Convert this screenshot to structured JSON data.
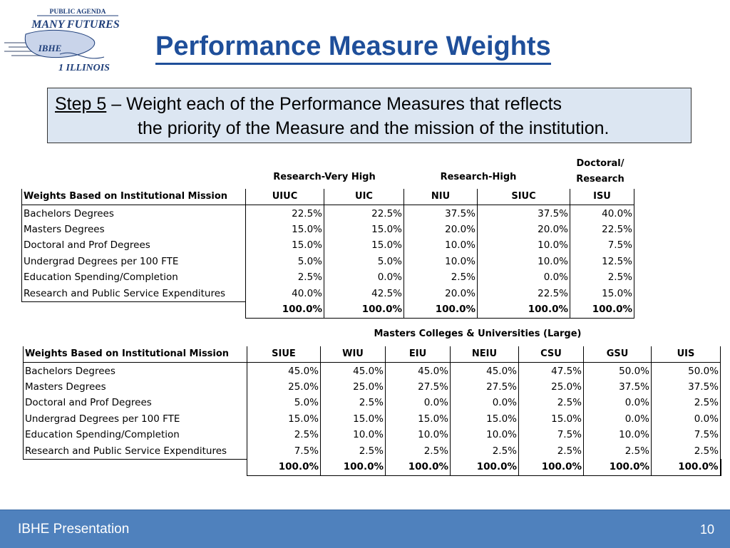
{
  "logo": {
    "line1": "PUBLIC AGENDA",
    "line2": "MANY FUTURES",
    "line3": "IBHE",
    "line4": "1 ILLINOIS"
  },
  "title": "Performance Measure Weights",
  "step": {
    "label": "Step 5",
    "line1_rest": " – Weight each of the Performance Measures that reflects",
    "line2": "the priority of the Measure and the mission of the institution."
  },
  "table1": {
    "groups": [
      {
        "label": "Research-Very High"
      },
      {
        "label": "Research-High"
      },
      {
        "label_line1": "Doctoral/",
        "label_line2": "Research"
      }
    ],
    "header": "Weights Based on Institutional Mission",
    "columns": [
      "UIUC",
      "UIC",
      "NIU",
      "SIUC",
      "ISU"
    ],
    "rows": [
      {
        "label": "Bachelors Degrees",
        "values": [
          "22.5%",
          "22.5%",
          "37.5%",
          "37.5%",
          "40.0%"
        ]
      },
      {
        "label": "Masters Degrees",
        "values": [
          "15.0%",
          "15.0%",
          "20.0%",
          "20.0%",
          "22.5%"
        ]
      },
      {
        "label": "Doctoral and Prof Degrees",
        "values": [
          "15.0%",
          "15.0%",
          "10.0%",
          "10.0%",
          "7.5%"
        ]
      },
      {
        "label": "Undergrad Degrees per 100 FTE",
        "values": [
          "5.0%",
          "5.0%",
          "10.0%",
          "10.0%",
          "12.5%"
        ]
      },
      {
        "label": "Education Spending/Completion",
        "values": [
          "2.5%",
          "0.0%",
          "2.5%",
          "0.0%",
          "2.5%"
        ]
      },
      {
        "label": "Research and Public Service Expenditures",
        "values": [
          "40.0%",
          "42.5%",
          "20.0%",
          "22.5%",
          "15.0%"
        ]
      }
    ],
    "totals": [
      "100.0%",
      "100.0%",
      "100.0%",
      "100.0%",
      "100.0%"
    ]
  },
  "table2": {
    "group": "Masters Colleges & Universities (Large)",
    "header": "Weights Based on Institutional Mission",
    "columns": [
      "SIUE",
      "WIU",
      "EIU",
      "NEIU",
      "CSU",
      "GSU",
      "UIS"
    ],
    "rows": [
      {
        "label": "Bachelors Degrees",
        "values": [
          "45.0%",
          "45.0%",
          "45.0%",
          "45.0%",
          "47.5%",
          "50.0%",
          "50.0%"
        ]
      },
      {
        "label": "Masters Degrees",
        "values": [
          "25.0%",
          "25.0%",
          "27.5%",
          "27.5%",
          "25.0%",
          "37.5%",
          "37.5%"
        ]
      },
      {
        "label": "Doctoral and Prof Degrees",
        "values": [
          "5.0%",
          "2.5%",
          "0.0%",
          "0.0%",
          "2.5%",
          "0.0%",
          "2.5%"
        ]
      },
      {
        "label": "Undergrad Degrees per 100 FTE",
        "values": [
          "15.0%",
          "15.0%",
          "15.0%",
          "15.0%",
          "15.0%",
          "0.0%",
          "0.0%"
        ]
      },
      {
        "label": "Education Spending/Completion",
        "values": [
          "2.5%",
          "10.0%",
          "10.0%",
          "10.0%",
          "7.5%",
          "10.0%",
          "7.5%"
        ]
      },
      {
        "label": "Research and Public Service Expenditures",
        "values": [
          "7.5%",
          "2.5%",
          "2.5%",
          "2.5%",
          "2.5%",
          "2.5%",
          "2.5%"
        ]
      }
    ],
    "totals": [
      "100.0%",
      "100.0%",
      "100.0%",
      "100.0%",
      "100.0%",
      "100.0%",
      "100.0%"
    ]
  },
  "footer": {
    "text": "IBHE Presentation",
    "page": "10"
  },
  "colors": {
    "title": "#1f4f9a",
    "step_box": "#dce6f2",
    "footer_bar": "#4f81bd"
  }
}
